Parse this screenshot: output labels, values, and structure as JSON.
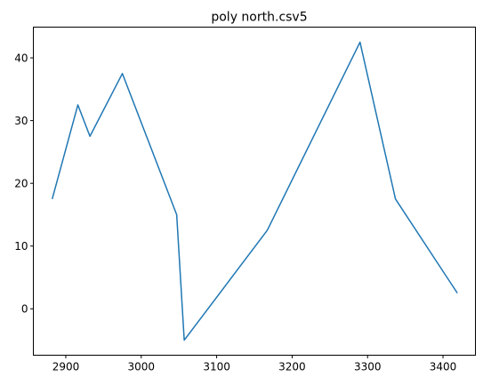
{
  "chart_data": {
    "type": "line",
    "title": "poly north.csv5",
    "xlabel": "",
    "ylabel": "",
    "xlim": [
      2857,
      3443
    ],
    "ylim": [
      -7.4,
      44.9
    ],
    "xticks": [
      2900,
      3000,
      3100,
      3200,
      3300,
      3400
    ],
    "yticks": [
      0,
      10,
      20,
      30,
      40
    ],
    "grid": false,
    "line_color": "#1f77b4",
    "series": [
      {
        "x": [
          2882,
          2916,
          2932,
          2975,
          3047,
          3057,
          3167,
          3290,
          3337,
          3419
        ],
        "y": [
          17.5,
          32.5,
          27.5,
          37.5,
          15.0,
          -5.0,
          12.5,
          42.5,
          17.5,
          2.5
        ]
      }
    ]
  }
}
